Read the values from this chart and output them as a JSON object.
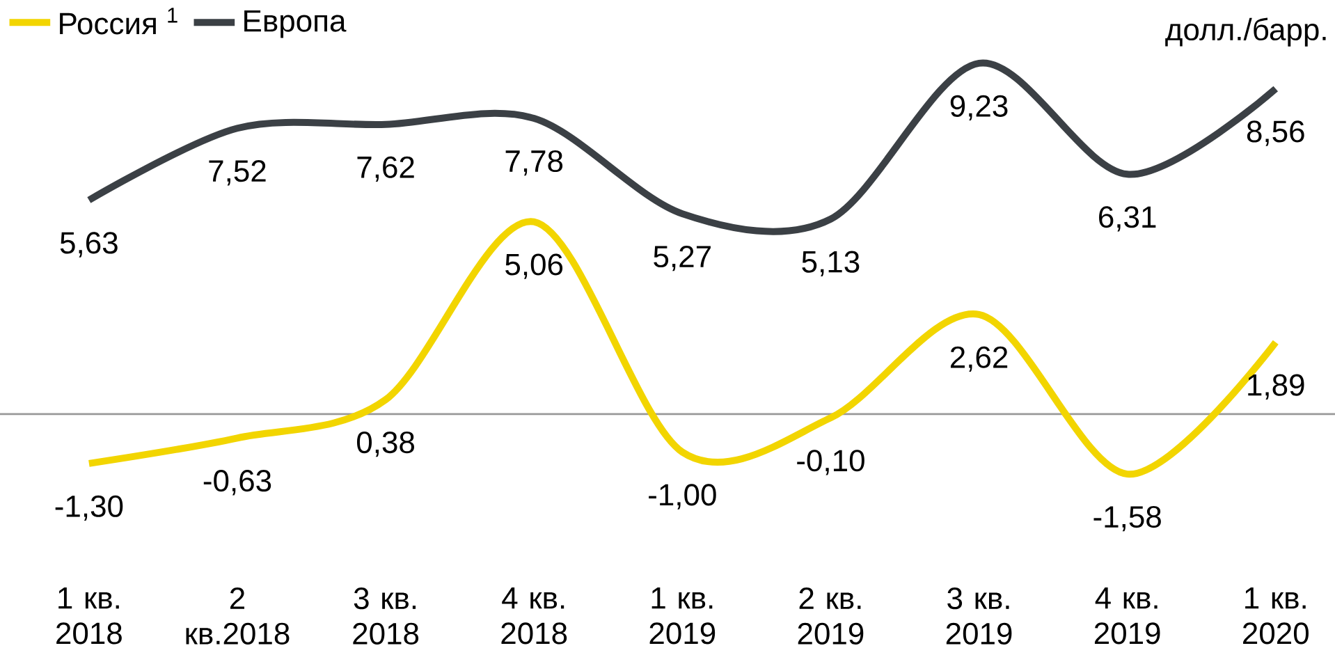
{
  "chart_data": {
    "type": "line",
    "ylabel": "долл./барр.",
    "categories": [
      "1 кв. 2018",
      "2 кв.2018",
      "3 кв. 2018",
      "4 кв. 2018",
      "1 кв. 2019",
      "2 кв. 2019",
      "3 кв. 2019",
      "4 кв. 2019",
      "1 кв. 2020"
    ],
    "series": [
      {
        "name": "Россия $^{1}$",
        "color": "#f2d500",
        "values": [
          -1.3,
          -0.63,
          0.38,
          5.06,
          -1.0,
          -0.1,
          2.62,
          -1.58,
          1.89
        ],
        "value_labels": [
          "-1,30",
          "-0,63",
          "0,38",
          "5,06",
          "-1,00",
          "-0,10",
          "2,62",
          "-1,58",
          "1,89"
        ]
      },
      {
        "name": "Европа",
        "color": "#3b4045",
        "values": [
          5.63,
          7.52,
          7.62,
          7.78,
          5.27,
          5.13,
          9.23,
          6.31,
          8.56
        ],
        "value_labels": [
          "5,63",
          "7,52",
          "7,62",
          "7,78",
          "5,27",
          "5,13",
          "9,23",
          "6,31",
          "8,56"
        ]
      }
    ],
    "ref_lines": [
      {
        "axis": "y",
        "value": 0,
        "color": "#999999"
      }
    ],
    "tick_labels": "x",
    "grid": false,
    "legend": "top left",
    "marker": "none",
    "line_style": "solid"
  }
}
